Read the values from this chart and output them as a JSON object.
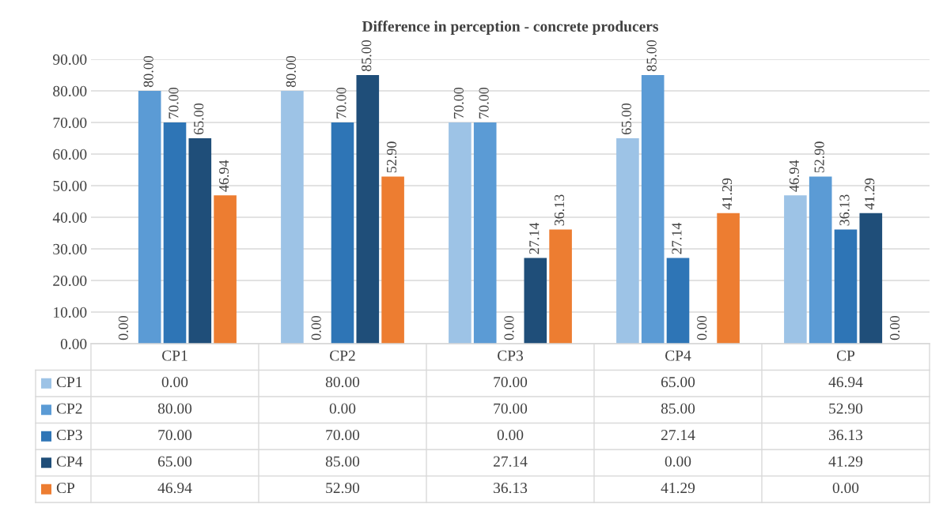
{
  "chart_data": {
    "type": "bar",
    "title": "Difference in perception - concrete producers",
    "categories": [
      "CP1",
      "CP2",
      "CP3",
      "CP4",
      "CP"
    ],
    "series": [
      {
        "name": "CP1",
        "color": "#9dc3e6",
        "values": [
          0,
          80,
          70,
          65,
          46.94
        ],
        "value_labels": [
          "0.00",
          "80.00",
          "70.00",
          "65.00",
          "46.94"
        ]
      },
      {
        "name": "CP2",
        "color": "#5b9bd5",
        "values": [
          80,
          0,
          70,
          85,
          52.9
        ],
        "value_labels": [
          "80.00",
          "0.00",
          "70.00",
          "85.00",
          "52.90"
        ]
      },
      {
        "name": "CP3",
        "color": "#2e75b6",
        "values": [
          70,
          70,
          0,
          27.14,
          36.13
        ],
        "value_labels": [
          "70.00",
          "70.00",
          "0.00",
          "27.14",
          "36.13"
        ]
      },
      {
        "name": "CP4",
        "color": "#1f4e79",
        "values": [
          65,
          85,
          27.14,
          0,
          41.29
        ],
        "value_labels": [
          "65.00",
          "85.00",
          "27.14",
          "0.00",
          "41.29"
        ]
      },
      {
        "name": "CP",
        "color": "#ed7d31",
        "values": [
          46.94,
          52.9,
          36.13,
          41.29,
          0
        ],
        "value_labels": [
          "46.94",
          "52.90",
          "36.13",
          "41.29",
          "0.00"
        ]
      }
    ],
    "ylim": [
      0,
      90
    ],
    "yticks": [
      {
        "value": 0,
        "label": "0.00"
      },
      {
        "value": 10,
        "label": "10.00"
      },
      {
        "value": 20,
        "label": "20.00"
      },
      {
        "value": 30,
        "label": "30.00"
      },
      {
        "value": 40,
        "label": "40.00"
      },
      {
        "value": 50,
        "label": "50.00"
      },
      {
        "value": 60,
        "label": "60.00"
      },
      {
        "value": 70,
        "label": "70.00"
      },
      {
        "value": 80,
        "label": "80.00"
      },
      {
        "value": 90,
        "label": "90.00"
      }
    ],
    "grid": "y",
    "legend": "bottom"
  }
}
